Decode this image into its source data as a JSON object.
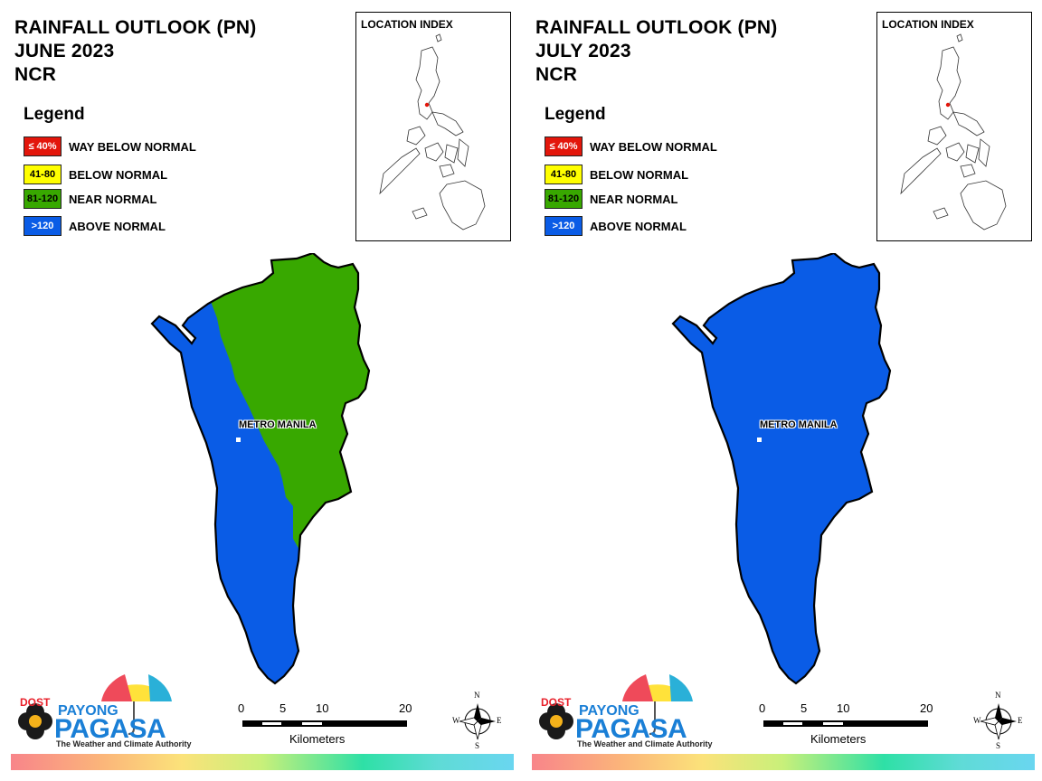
{
  "panels": [
    {
      "id": "june",
      "title_lines": [
        "RAINFALL OUTLOOK (PN)",
        "JUNE 2023",
        "NCR"
      ],
      "legend_title": "Legend",
      "legend": [
        {
          "swatch": "≤ 40%",
          "label": "WAY BELOW NORMAL",
          "color": "#e3160b",
          "text_color": "#ffffff"
        },
        {
          "swatch": "41-80",
          "label": "BELOW NORMAL",
          "color": "#ffff00",
          "text_color": "#000000"
        },
        {
          "swatch": "81-120",
          "label": "NEAR NORMAL",
          "color": "#38a800",
          "text_color": "#000000"
        },
        {
          "swatch": ">120",
          "label": "ABOVE NORMAL",
          "color": "#0a5ce6",
          "text_color": "#ffffff"
        }
      ],
      "location_index_label": "LOCATION INDEX",
      "map_label": "METRO MANILA",
      "map_categories": [
        "ABOVE NORMAL",
        "NEAR NORMAL"
      ],
      "scale": {
        "ticks": [
          "0",
          "5",
          "10",
          "20"
        ],
        "unit": "Kilometers"
      },
      "compass": {
        "n": "N",
        "s": "S",
        "e": "E",
        "w": "W"
      },
      "logo": {
        "dost": "DOST",
        "payong": "PAYONG",
        "pagasa": "PAGASA",
        "tagline": "The Weather and Climate Authority"
      }
    },
    {
      "id": "july",
      "title_lines": [
        "RAINFALL OUTLOOK (PN)",
        "JULY 2023",
        "NCR"
      ],
      "legend_title": "Legend",
      "legend": [
        {
          "swatch": "≤ 40%",
          "label": "WAY BELOW NORMAL",
          "color": "#e3160b",
          "text_color": "#ffffff"
        },
        {
          "swatch": "41-80",
          "label": "BELOW NORMAL",
          "color": "#ffff00",
          "text_color": "#000000"
        },
        {
          "swatch": "81-120",
          "label": "NEAR NORMAL",
          "color": "#38a800",
          "text_color": "#000000"
        },
        {
          "swatch": ">120",
          "label": "ABOVE NORMAL",
          "color": "#0a5ce6",
          "text_color": "#ffffff"
        }
      ],
      "location_index_label": "LOCATION INDEX",
      "map_label": "METRO MANILA",
      "map_categories": [
        "ABOVE NORMAL"
      ],
      "scale": {
        "ticks": [
          "0",
          "5",
          "10",
          "20"
        ],
        "unit": "Kilometers"
      },
      "compass": {
        "n": "N",
        "s": "S",
        "e": "E",
        "w": "W"
      },
      "logo": {
        "dost": "DOST",
        "payong": "PAYONG",
        "pagasa": "PAGASA",
        "tagline": "The Weather and Climate Authority"
      }
    }
  ],
  "colors": {
    "above_normal": "#0a5ce6",
    "near_normal": "#38a800",
    "outline": "#000000",
    "logo_blue": "#1a7fd6",
    "logo_red": "#e8202a"
  }
}
